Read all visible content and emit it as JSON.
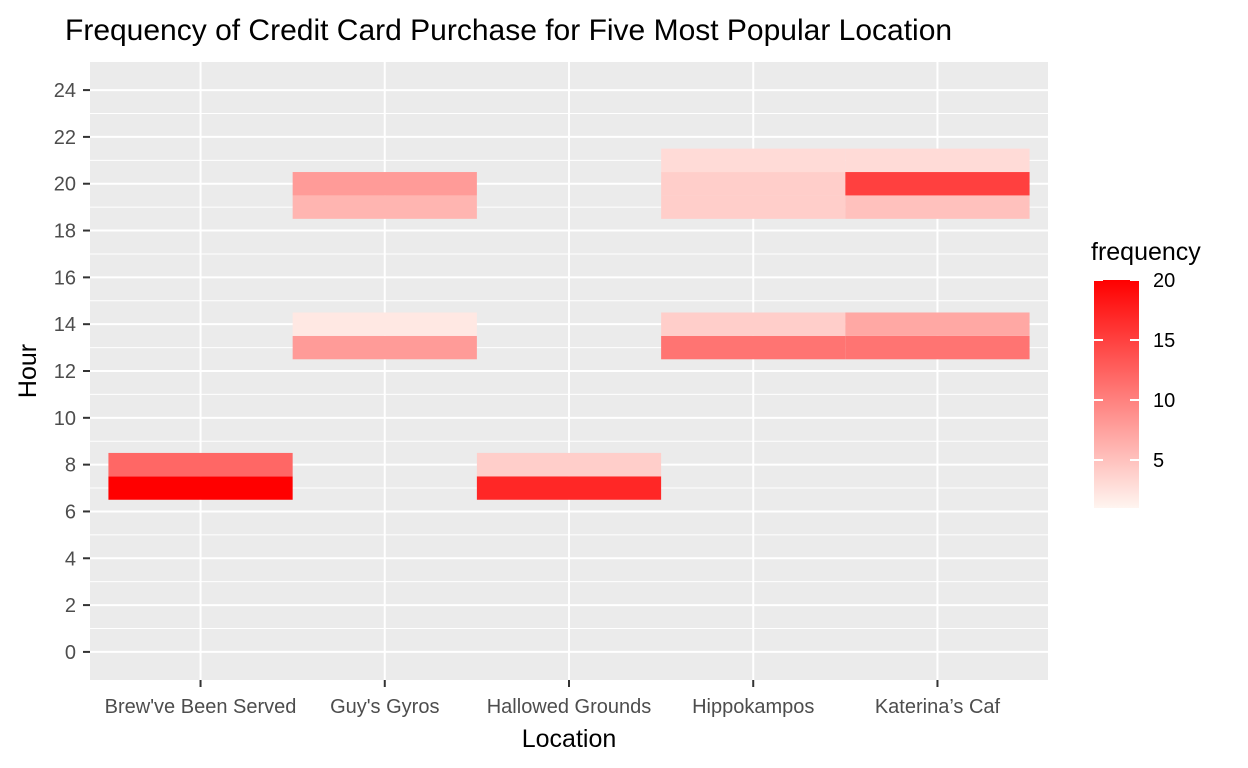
{
  "chart_data": {
    "type": "heatmap",
    "title": "Frequency of Credit Card Purchase for Five Most Popular Location",
    "xlabel": "Location",
    "ylabel": "Hour",
    "categories": [
      "Brew've Been Served",
      "Guy's Gyros",
      "Hallowed Grounds",
      "Hippokampos",
      "Katerina’s Caf"
    ],
    "y_ticks": [
      0,
      2,
      4,
      6,
      8,
      10,
      12,
      14,
      16,
      18,
      20,
      22,
      24
    ],
    "ylim": [
      -1.2,
      25.2
    ],
    "grid": true,
    "legend": {
      "title": "frequency",
      "placement": "right",
      "ticks": [
        5,
        10,
        15,
        20
      ],
      "range": [
        1,
        20
      ],
      "low_color": "#fff5f0",
      "high_color": "#ff0000"
    },
    "cells": [
      {
        "location": "Brew've Been Served",
        "hour": 7,
        "frequency": 20
      },
      {
        "location": "Brew've Been Served",
        "hour": 8,
        "frequency": 12
      },
      {
        "location": "Guy's Gyros",
        "hour": 13,
        "frequency": 8
      },
      {
        "location": "Guy's Gyros",
        "hour": 14,
        "frequency": 2
      },
      {
        "location": "Guy's Gyros",
        "hour": 19,
        "frequency": 6
      },
      {
        "location": "Guy's Gyros",
        "hour": 20,
        "frequency": 8
      },
      {
        "location": "Hallowed Grounds",
        "hour": 7,
        "frequency": 17
      },
      {
        "location": "Hallowed Grounds",
        "hour": 8,
        "frequency": 4
      },
      {
        "location": "Hippokampos",
        "hour": 13,
        "frequency": 11
      },
      {
        "location": "Hippokampos",
        "hour": 14,
        "frequency": 4
      },
      {
        "location": "Hippokampos",
        "hour": 19,
        "frequency": 4
      },
      {
        "location": "Hippokampos",
        "hour": 20,
        "frequency": 4
      },
      {
        "location": "Hippokampos",
        "hour": 21,
        "frequency": 3
      },
      {
        "location": "Katerina’s Caf",
        "hour": 13,
        "frequency": 11
      },
      {
        "location": "Katerina’s Caf",
        "hour": 14,
        "frequency": 7
      },
      {
        "location": "Katerina’s Caf",
        "hour": 19,
        "frequency": 5
      },
      {
        "location": "Katerina’s Caf",
        "hour": 20,
        "frequency": 15
      },
      {
        "location": "Katerina’s Caf",
        "hour": 21,
        "frequency": 3
      }
    ]
  }
}
